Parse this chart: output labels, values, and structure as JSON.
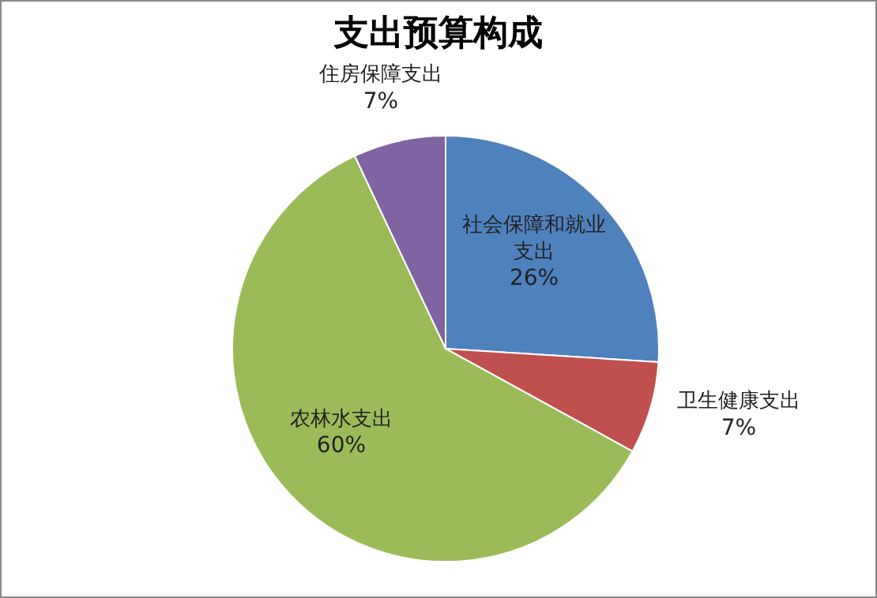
{
  "chart_data": {
    "type": "pie",
    "title": "支出预算构成",
    "categories": [
      "社会保障和就业支出",
      "卫生健康支出",
      "农林水支出",
      "住房保障支出"
    ],
    "values": [
      26,
      7,
      60,
      7
    ],
    "colors": [
      "#4f81bd",
      "#c0504d",
      "#9bbb59",
      "#8064a2"
    ],
    "value_labels": [
      "26%",
      "7%",
      "60%",
      "7%"
    ],
    "legend": false
  }
}
